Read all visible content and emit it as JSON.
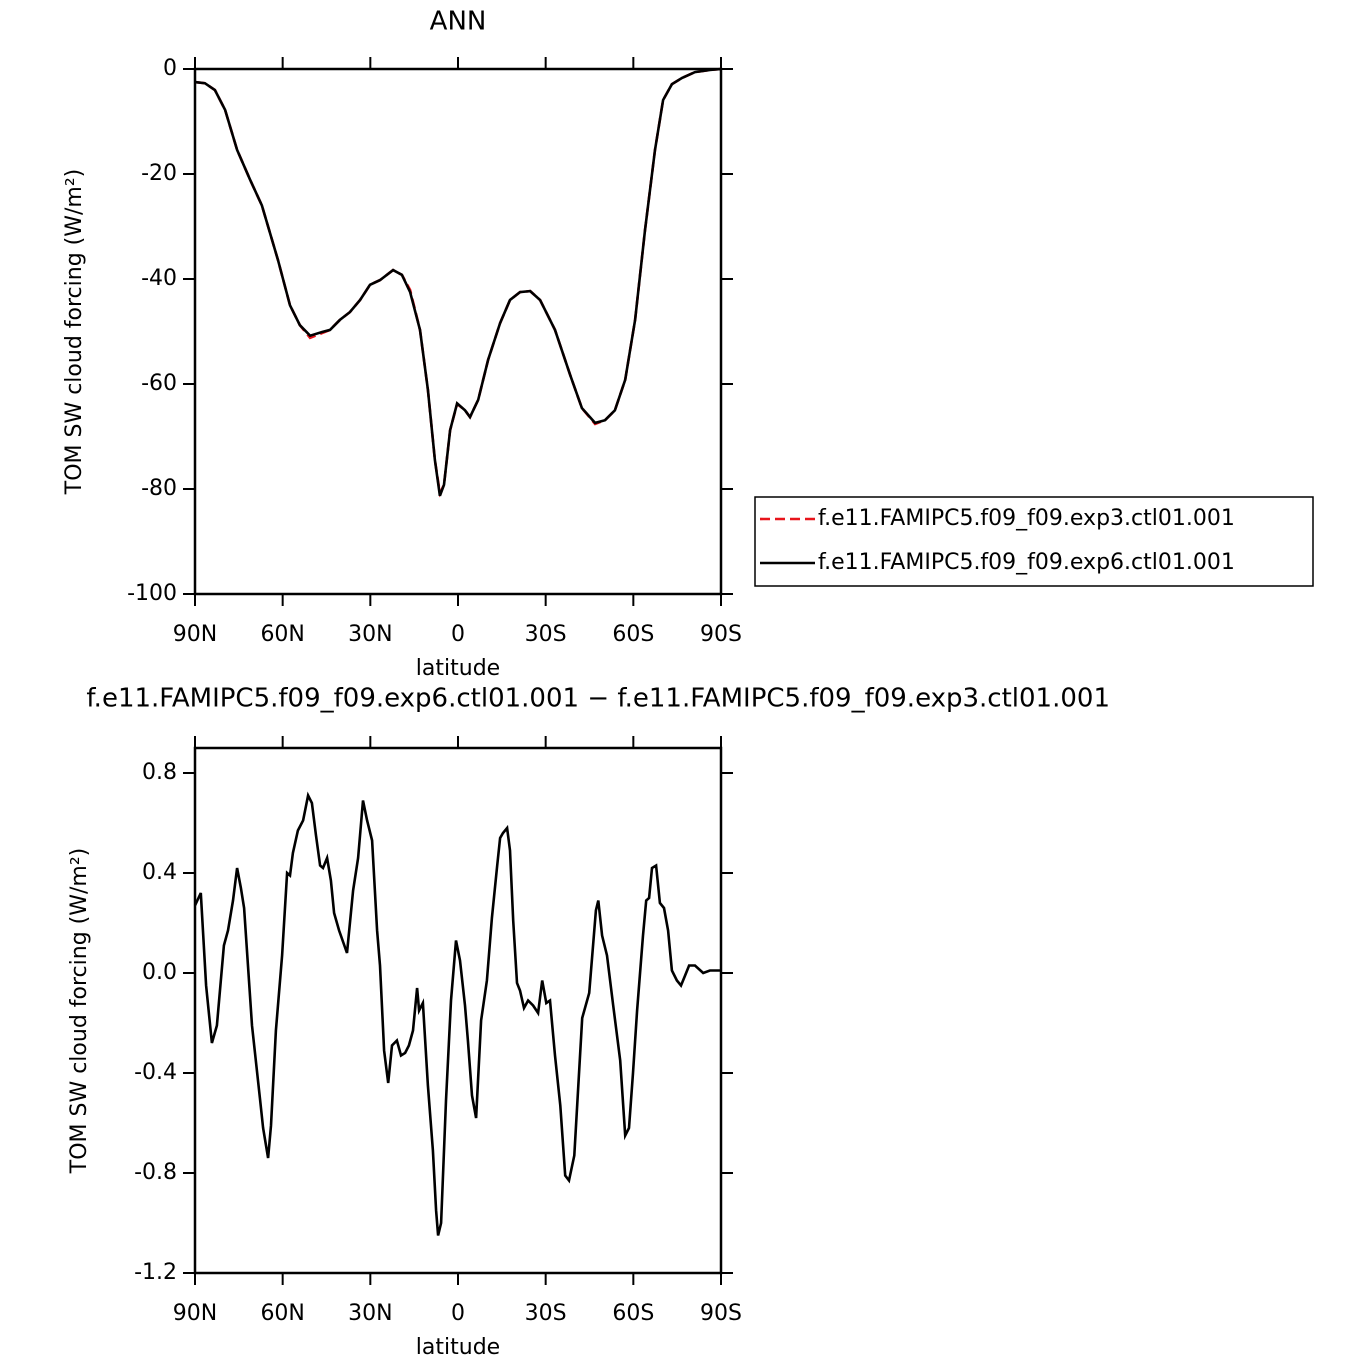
{
  "chart_data": [
    {
      "type": "line",
      "title": "ANN",
      "xlabel": "latitude",
      "ylabel": "TOM SW cloud forcing (W/m²)",
      "xlim": [
        90,
        -90
      ],
      "xticks": [
        {
          "value": 90,
          "label": "90N"
        },
        {
          "value": 60,
          "label": "60N"
        },
        {
          "value": 30,
          "label": "30N"
        },
        0,
        {
          "value": -30,
          "label": "30S"
        },
        {
          "value": -60,
          "label": "60S"
        },
        {
          "value": -90,
          "label": "90S"
        }
      ],
      "ylim": [
        -100,
        0
      ],
      "yticks": [
        -100,
        -80,
        -60,
        -40,
        -20,
        0
      ],
      "legend": "right",
      "x": [
        90,
        86.6,
        83.2,
        79.7,
        75.6,
        71.2,
        67.1,
        61.6,
        57.5,
        54.1,
        50.6,
        46.5,
        43.8,
        40.4,
        37,
        33.5,
        30.1,
        26.7,
        22.2,
        19.2,
        16.4,
        13,
        10.3,
        7.9,
        6.2,
        4.8,
        2.7,
        0.3,
        -2.4,
        -4.1,
        -6.9,
        -10.3,
        -14.4,
        -17.8,
        -21.2,
        -24.7,
        -28.1,
        -33.2,
        -38.4,
        -42.4,
        -46.9,
        -50.3,
        -53.7,
        -57.2,
        -60.6,
        -64,
        -67.4,
        -70.2,
        -73.2,
        -76.7,
        -81.1,
        -86.2,
        -90
      ],
      "series": [
        {
          "name": "f.e11.FAMIPC5.f09_f09.exp3.ctl01.001",
          "color": "#e8141b",
          "dash": true,
          "values": [
            -2.5,
            -2.7,
            -4,
            -7.8,
            -15.4,
            -21,
            -26,
            -36.4,
            -45,
            -48.8,
            -51.2,
            -50.3,
            -49.7,
            -47.8,
            -46.3,
            -44,
            -41.1,
            -40.2,
            -38.3,
            -39.2,
            -42.1,
            -49.7,
            -61.1,
            -74.5,
            -80.8,
            -79.2,
            -68.8,
            -63.8,
            -65,
            -66.3,
            -63,
            -55.4,
            -48.4,
            -44,
            -42.5,
            -42.3,
            -44,
            -49.7,
            -58.3,
            -64.6,
            -67.6,
            -66.9,
            -65,
            -59.2,
            -47.8,
            -30.7,
            -15.4,
            -5.9,
            -2.9,
            -1.7,
            -0.6,
            -0.2,
            0
          ]
        },
        {
          "name": "f.e11.FAMIPC5.f09_f09.exp6.ctl01.001",
          "color": "#000000",
          "dash": false,
          "values": [
            -2.5,
            -2.7,
            -4,
            -7.8,
            -15.4,
            -21,
            -26,
            -36.4,
            -45,
            -48.8,
            -50.8,
            -50.1,
            -49.7,
            -47.8,
            -46.3,
            -44,
            -41.1,
            -40.2,
            -38.3,
            -39.2,
            -42.5,
            -49.7,
            -61.1,
            -74.5,
            -81.3,
            -79.2,
            -68.8,
            -63.7,
            -65,
            -66.3,
            -63,
            -55.4,
            -48.4,
            -44,
            -42.5,
            -42.3,
            -44,
            -49.7,
            -58.3,
            -64.6,
            -67.4,
            -66.9,
            -65,
            -59.2,
            -47.8,
            -30.7,
            -15.4,
            -5.9,
            -2.9,
            -1.7,
            -0.6,
            -0.2,
            0
          ]
        }
      ]
    },
    {
      "type": "line",
      "title": "f.e11.FAMIPC5.f09_f09.exp6.ctl01.001 − f.e11.FAMIPC5.f09_f09.exp3.ctl01.001",
      "xlabel": "latitude",
      "ylabel": "TOM SW cloud forcing (W/m²)",
      "xlim": [
        90,
        -90
      ],
      "xticks": [
        {
          "value": 90,
          "label": "90N"
        },
        {
          "value": 60,
          "label": "60N"
        },
        {
          "value": 30,
          "label": "30N"
        },
        0,
        {
          "value": -30,
          "label": "30S"
        },
        {
          "value": -60,
          "label": "60S"
        },
        {
          "value": -90,
          "label": "90S"
        }
      ],
      "ylim": [
        -1.2,
        0.9
      ],
      "yticks": [
        -1.2,
        -0.8,
        -0.4,
        {
          "value": 0,
          "label": "0.0"
        },
        0.4,
        0.8
      ],
      "color": "#000000",
      "x": [
        90,
        88,
        86.2,
        84.2,
        82.5,
        80.1,
        78.7,
        77,
        75.6,
        74.3,
        73.2,
        70.5,
        67.8,
        66.7,
        65,
        64,
        62.3,
        60.2,
        58.5,
        57.5,
        56.5,
        54.8,
        53,
        51.3,
        50,
        48.6,
        47.2,
        46.2,
        44.8,
        43.5,
        42.4,
        40.7,
        38,
        35.9,
        34.2,
        32.5,
        31.1,
        29.4,
        27.7,
        26.7,
        25.3,
        23.9,
        22.6,
        20.9,
        19.5,
        18.1,
        16.8,
        15.4,
        14,
        13.3,
        12,
        10.3,
        8.6,
        7.5,
        6.8,
        5.8,
        4.1,
        2.4,
        0.7,
        -0.7,
        -2.4,
        -3.4,
        -4.8,
        -6.2,
        -7.9,
        -9.9,
        -11.6,
        -13.4,
        -14.4,
        -15.4,
        -16.8,
        -17.8,
        -18.9,
        -20.2,
        -21.2,
        -22.6,
        -24,
        -25.7,
        -27.4,
        -28.8,
        -30.2,
        -31.5,
        -33.2,
        -35,
        -36.7,
        -38,
        -39.8,
        -42.5,
        -44.9,
        -47.2,
        -48,
        -49.3,
        -51,
        -53.1,
        -55.5,
        -57.2,
        -58.5,
        -59.9,
        -61.3,
        -63.3,
        -64.4,
        -65.4,
        -66.4,
        -67.8,
        -69.1,
        -70.5,
        -71.9,
        -73.2,
        -74.9,
        -76.3,
        -77.7,
        -79.1,
        -81.1,
        -83.9,
        -86.2,
        -90
      ],
      "values": [
        0.27,
        0.32,
        -0.05,
        -0.28,
        -0.21,
        0.11,
        0.17,
        0.29,
        0.42,
        0.34,
        0.26,
        -0.21,
        -0.5,
        -0.62,
        -0.74,
        -0.61,
        -0.23,
        0.07,
        0.4,
        0.39,
        0.48,
        0.57,
        0.61,
        0.71,
        0.68,
        0.55,
        0.43,
        0.42,
        0.46,
        0.37,
        0.24,
        0.17,
        0.08,
        0.33,
        0.46,
        0.69,
        0.61,
        0.53,
        0.17,
        0.03,
        -0.31,
        -0.44,
        -0.29,
        -0.27,
        -0.33,
        -0.32,
        -0.29,
        -0.23,
        -0.06,
        -0.15,
        -0.12,
        -0.45,
        -0.71,
        -0.95,
        -1.05,
        -1,
        -0.51,
        -0.11,
        0.13,
        0.05,
        -0.13,
        -0.27,
        -0.49,
        -0.58,
        -0.19,
        -0.03,
        0.22,
        0.43,
        0.54,
        0.56,
        0.58,
        0.49,
        0.21,
        -0.04,
        -0.07,
        -0.14,
        -0.11,
        -0.13,
        -0.16,
        -0.03,
        -0.12,
        -0.11,
        -0.33,
        -0.53,
        -0.81,
        -0.83,
        -0.73,
        -0.18,
        -0.08,
        0.25,
        0.29,
        0.15,
        0.07,
        -0.13,
        -0.35,
        -0.65,
        -0.62,
        -0.4,
        -0.15,
        0.15,
        0.29,
        0.3,
        0.42,
        0.43,
        0.28,
        0.26,
        0.17,
        0.01,
        -0.03,
        -0.05,
        -0.01,
        0.03,
        0.03,
        0,
        0.01,
        0.01
      ]
    }
  ]
}
